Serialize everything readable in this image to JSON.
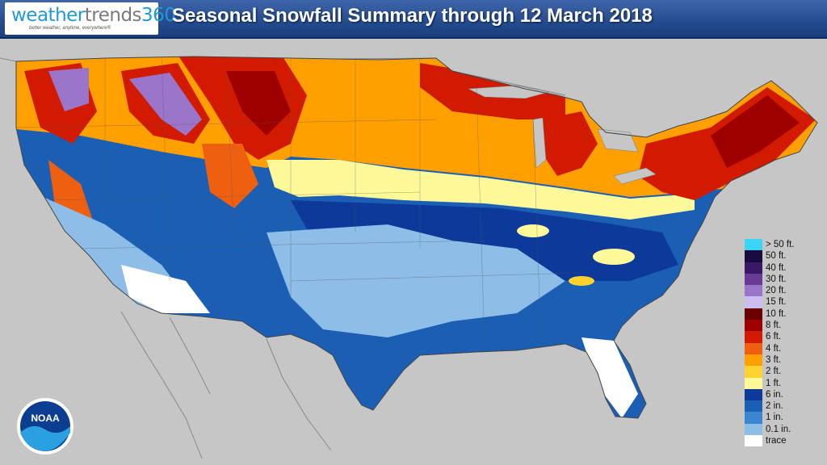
{
  "header": {
    "title": "Seasonal Snowfall Summary through 12 March 2018",
    "logo_part1": "weather",
    "logo_part2": "trends",
    "logo_part3": "360",
    "logo_tagline": "better weather, anytime, everywhere®"
  },
  "noaa_logo_text": "NOAA",
  "legend": [
    {
      "label": "> 50 ft.",
      "color": "#3ad4f4"
    },
    {
      "label": "50 ft.",
      "color": "#1a0b3f"
    },
    {
      "label": "40 ft.",
      "color": "#3a1866"
    },
    {
      "label": "30 ft.",
      "color": "#6a3a97"
    },
    {
      "label": "20 ft.",
      "color": "#9a75c9"
    },
    {
      "label": "15 ft.",
      "color": "#cdbcf0"
    },
    {
      "label": "10 ft.",
      "color": "#6b0000"
    },
    {
      "label": "8 ft.",
      "color": "#9e0000"
    },
    {
      "label": "6 ft.",
      "color": "#d21a00"
    },
    {
      "label": "4 ft.",
      "color": "#ef5f10"
    },
    {
      "label": "3 ft.",
      "color": "#ffa000"
    },
    {
      "label": "2 ft.",
      "color": "#ffd22e"
    },
    {
      "label": "1 ft.",
      "color": "#fffa99"
    },
    {
      "label": "6 in.",
      "color": "#0d3a9a"
    },
    {
      "label": "2 in.",
      "color": "#1b5fb5"
    },
    {
      "label": "1 in.",
      "color": "#3c86cf"
    },
    {
      "label": "0.1 in.",
      "color": "#8ebde8"
    },
    {
      "label": "trace",
      "color": "#ffffff"
    }
  ]
}
